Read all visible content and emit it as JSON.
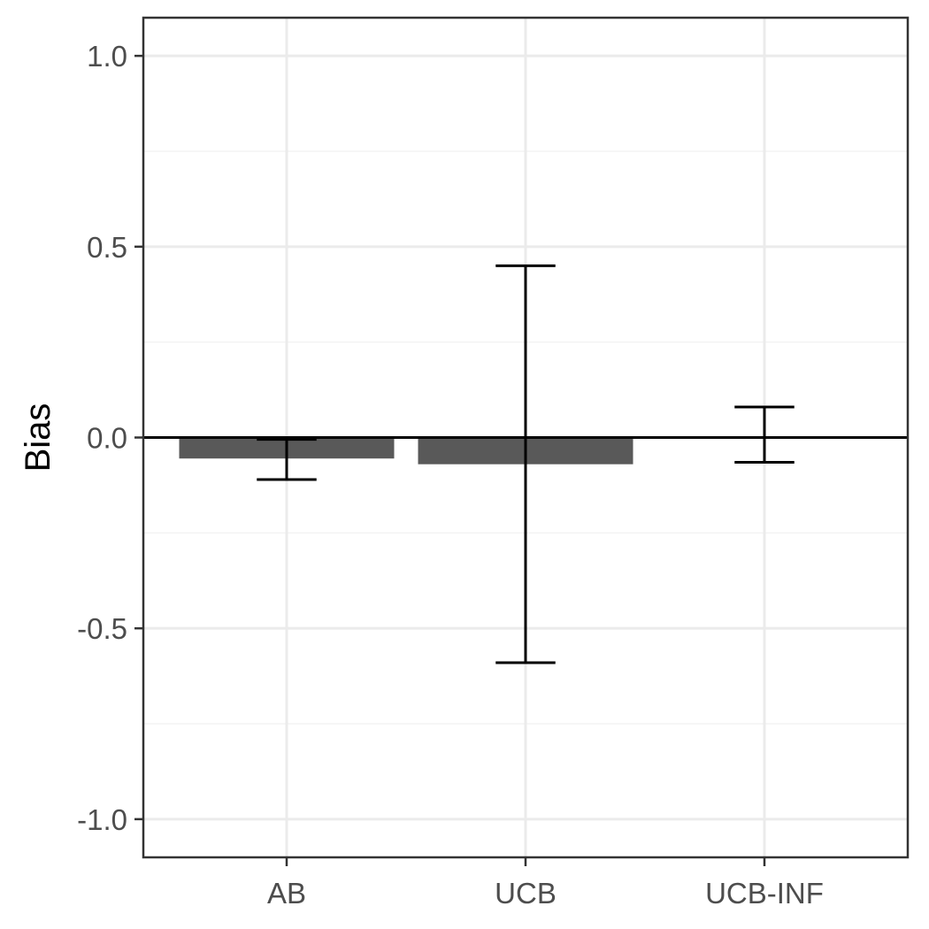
{
  "chart_data": {
    "type": "bar",
    "categories": [
      "AB",
      "UCB",
      "UCB-INF"
    ],
    "values": [
      -0.055,
      -0.07,
      0.002
    ],
    "error_low": [
      -0.11,
      -0.59,
      -0.065
    ],
    "error_high": [
      -0.005,
      0.45,
      0.08
    ],
    "title": "",
    "xlabel": "",
    "ylabel": "Bias",
    "ylim": [
      -1.1,
      1.1
    ],
    "yticks": [
      -1.0,
      -0.5,
      0.0,
      0.5,
      1.0
    ],
    "ytick_labels": [
      "-1.0",
      "-0.5",
      "0.0",
      "0.5",
      "1.0"
    ],
    "grid": true,
    "reference_line_y": 0,
    "colors": {
      "bar": "#595959",
      "error_bar": "#000000",
      "grid_major": "#ebebeb",
      "grid_minor": "#f3f3f3",
      "panel_border": "#333333"
    }
  }
}
